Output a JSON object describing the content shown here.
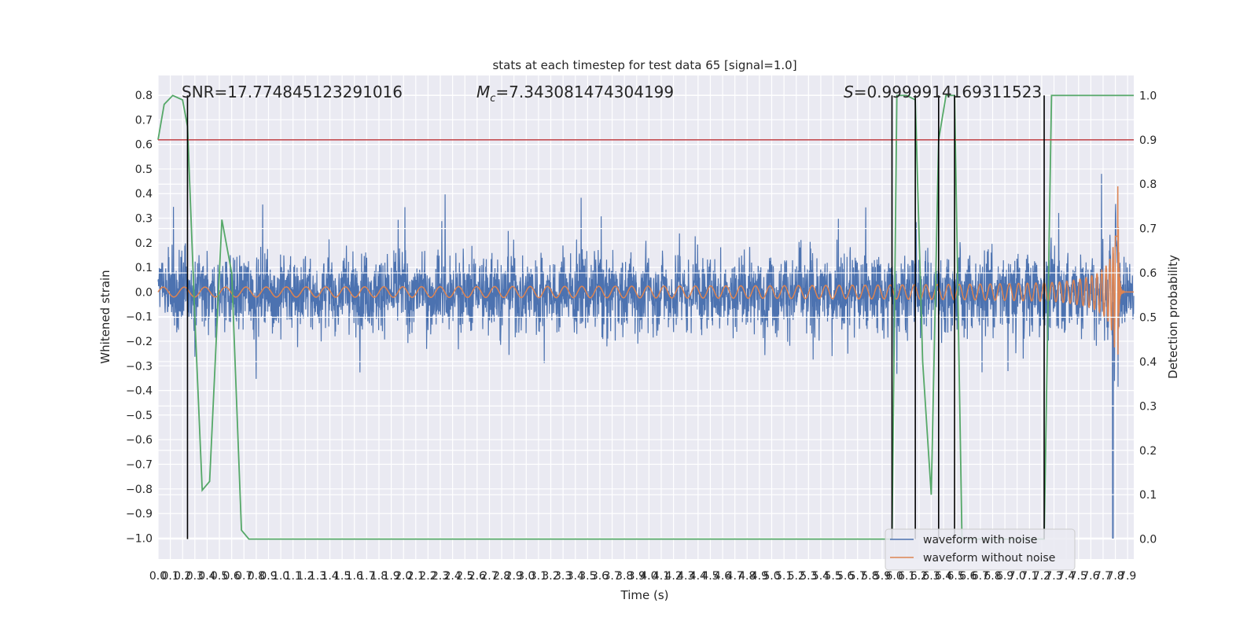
{
  "chart_data": {
    "type": "line",
    "title": "stats at each timestep for test data 65 [signal=1.0]",
    "xlabel": "Time (s)",
    "ylabel": "Whitened strain",
    "ylabel_right": "Detection probability",
    "xlim": [
      0.0,
      7.95
    ],
    "ylim": [
      -1.085,
      0.88
    ],
    "ylim_right": [
      -0.045,
      1.045
    ],
    "x_ticks": [
      "0.0",
      "0.1",
      "0.2",
      "0.3",
      "0.4",
      "0.5",
      "0.6",
      "0.7",
      "0.8",
      "0.9",
      "1.0",
      "1.1",
      "1.2",
      "1.3",
      "1.4",
      "1.5",
      "1.6",
      "1.7",
      "1.8",
      "1.9",
      "2.0",
      "2.1",
      "2.2",
      "2.3",
      "2.4",
      "2.5",
      "2.6",
      "2.7",
      "2.8",
      "2.9",
      "3.0",
      "3.1",
      "3.2",
      "3.3",
      "3.4",
      "3.5",
      "3.6",
      "3.7",
      "3.8",
      "3.9",
      "4.0",
      "4.1",
      "4.2",
      "4.3",
      "4.4",
      "4.5",
      "4.6",
      "4.7",
      "4.8",
      "4.9",
      "5.0",
      "5.1",
      "5.2",
      "5.3",
      "5.4",
      "5.5",
      "5.6",
      "5.7",
      "5.8",
      "5.9",
      "6.0",
      "6.1",
      "6.2",
      "6.3",
      "6.4",
      "6.5",
      "6.6",
      "6.7",
      "6.8",
      "6.9",
      "7.0",
      "7.1",
      "7.2",
      "7.3",
      "7.4",
      "7.5",
      "7.6",
      "7.7",
      "7.8",
      "7.9"
    ],
    "y_ticks_left": [
      "0.8",
      "0.7",
      "0.6",
      "0.5",
      "0.4",
      "0.3",
      "0.2",
      "0.1",
      "0.0",
      "−0.1",
      "−0.2",
      "−0.3",
      "−0.4",
      "−0.5",
      "−0.6",
      "−0.7",
      "−0.8",
      "−0.9",
      "−1.0"
    ],
    "y_ticks_right": [
      "1.0",
      "0.9",
      "0.8",
      "0.7",
      "0.6",
      "0.5",
      "0.4",
      "0.3",
      "0.2",
      "0.1",
      "0.0"
    ],
    "annotations": {
      "snr": "SNR=17.774845123291016",
      "mc_symbol": "M",
      "mc_sub": "c",
      "mc_value": "=7.343081474304199",
      "s_symbol": "S",
      "s_value": "=0.9999914169311523"
    },
    "threshold": {
      "value": 0.9,
      "color": "#c44e52"
    },
    "vertical_lines": [
      0.24,
      5.98,
      6.17,
      6.36,
      6.49,
      7.22
    ],
    "legend": [
      {
        "label": "waveform with noise",
        "color": "#4c72b0"
      },
      {
        "label": "waveform without noise",
        "color": "#dd8452"
      }
    ],
    "series": [
      {
        "name": "waveform with noise",
        "axis": "left",
        "color": "#4c72b0",
        "description": "noisy whitened strain, envelope approx ±0.3 with spikes to about ±0.75"
      },
      {
        "name": "waveform without noise",
        "axis": "left",
        "color": "#dd8452",
        "description": "chirp, amplitude ~0.02 growing to ~0.45 near 7.8 s, then ringdown"
      },
      {
        "name": "detection probability",
        "axis": "right",
        "color": "#55a868",
        "x": [
          0.0,
          0.05,
          0.12,
          0.2,
          0.24,
          0.3,
          0.36,
          0.42,
          0.52,
          0.6,
          0.68,
          0.74,
          1.0,
          3.0,
          5.98,
          6.02,
          6.1,
          6.17,
          6.23,
          6.3,
          6.36,
          6.42,
          6.49,
          6.55,
          7.22,
          7.28,
          7.3,
          7.95
        ],
        "y": [
          0.9,
          0.98,
          1.0,
          0.99,
          0.93,
          0.5,
          0.11,
          0.13,
          0.72,
          0.6,
          0.02,
          0.0,
          0.0,
          0.0,
          0.0,
          1.0,
          1.0,
          0.99,
          0.4,
          0.1,
          0.9,
          1.0,
          1.0,
          0.0,
          0.0,
          1.0,
          1.0,
          1.0
        ]
      }
    ]
  }
}
